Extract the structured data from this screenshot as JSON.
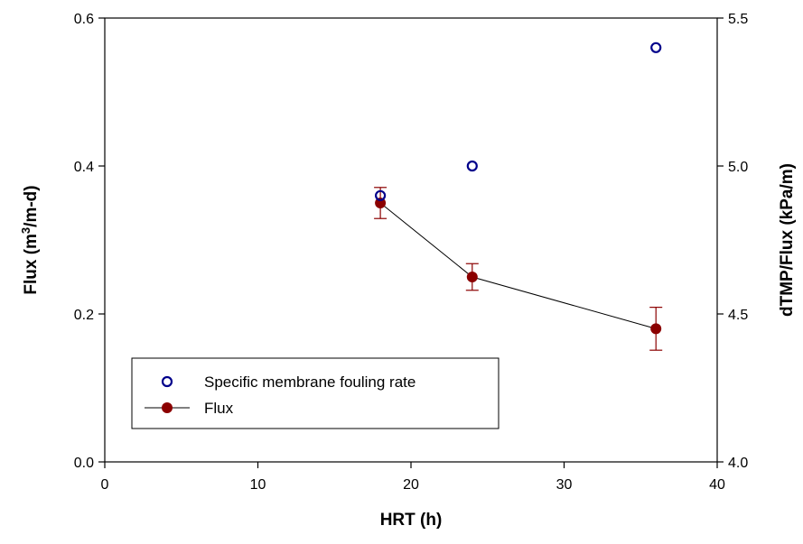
{
  "chart_data": {
    "type": "scatter",
    "xlabel": "HRT (h)",
    "ylabel_left": {
      "main": "Flux (m",
      "sup": "3",
      "rest": "/m-d)"
    },
    "ylabel_right": "dTMP/Flux (kPa/m)",
    "xlim": [
      0,
      40
    ],
    "ylim_left": [
      0.0,
      0.6
    ],
    "ylim_right": [
      4.0,
      5.5
    ],
    "xticks": [
      "0",
      "10",
      "20",
      "30",
      "40"
    ],
    "yticks_left": [
      "0.0",
      "0.2",
      "0.4",
      "0.6"
    ],
    "yticks_right": [
      "4.0",
      "4.5",
      "5.0",
      "5.5"
    ],
    "grid": false,
    "legend_position": "bottom-left",
    "series": [
      {
        "name": "Specific membrane fouling rate",
        "axis": "right",
        "marker": "open-circle",
        "color": "#00008b",
        "x": [
          18,
          24,
          36
        ],
        "y": [
          4.9,
          5.0,
          5.4
        ]
      },
      {
        "name": "Flux",
        "axis": "left",
        "marker": "filled-circle-line",
        "color": "#8b0000",
        "x": [
          18,
          24,
          36
        ],
        "y": [
          0.35,
          0.25,
          0.18
        ],
        "error": [
          0.021,
          0.018,
          0.029
        ]
      }
    ]
  }
}
